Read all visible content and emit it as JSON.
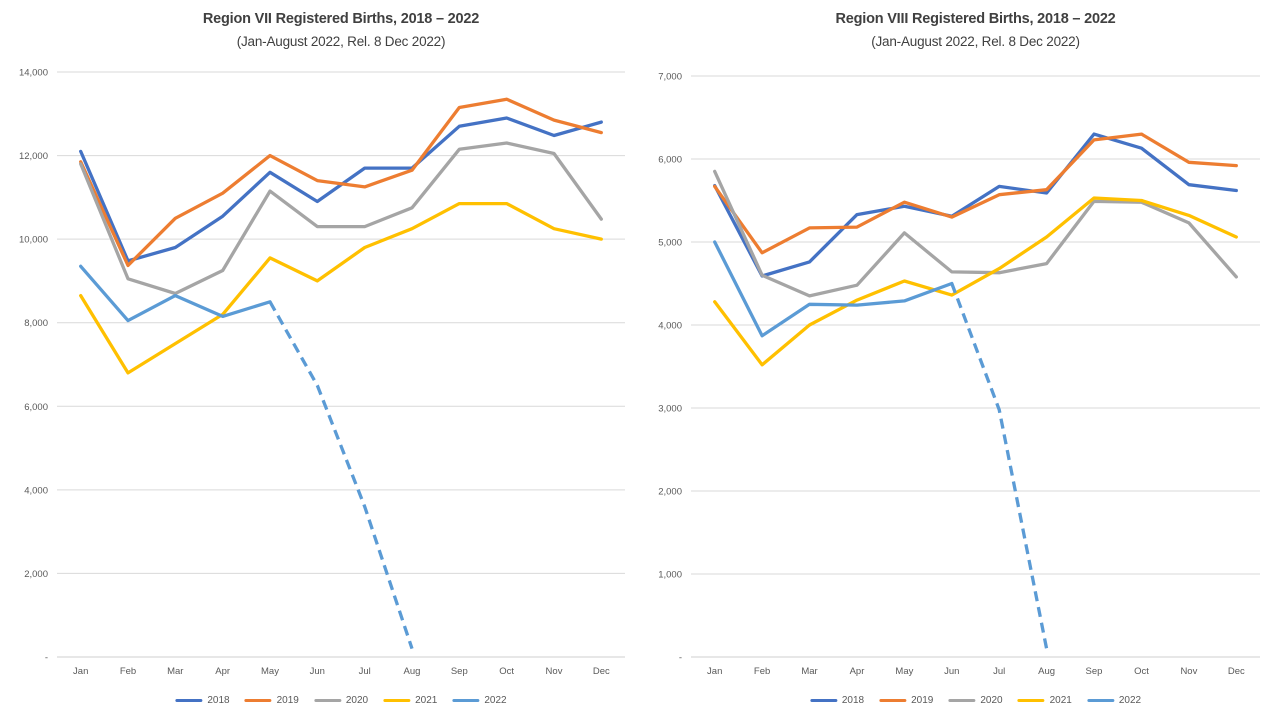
{
  "chart_data": [
    {
      "type": "line",
      "title": "Region VII Registered Births, 2018 – 2022",
      "subtitle": "(Jan-August 2022, Rel. 8 Dec 2022)",
      "categories": [
        "Jan",
        "Feb",
        "Mar",
        "Apr",
        "May",
        "Jun",
        "Jul",
        "Aug",
        "Sep",
        "Oct",
        "Nov",
        "Dec"
      ],
      "ylim": [
        0,
        14000
      ],
      "ytick_step": 2000,
      "ytick_labels": [
        "-",
        "2,000",
        "4,000",
        "6,000",
        "8,000",
        "10,000",
        "12,000",
        "14,000"
      ],
      "grid": true,
      "legend_position": "bottom",
      "series": [
        {
          "name": "2018",
          "color": "#4472C4",
          "values": [
            12100,
            9480,
            9800,
            10550,
            11600,
            10900,
            11700,
            11700,
            12700,
            12900,
            12480,
            12800
          ]
        },
        {
          "name": "2019",
          "color": "#ED7D31",
          "values": [
            11850,
            9370,
            10500,
            11100,
            12000,
            11400,
            11250,
            11650,
            13150,
            13350,
            12850,
            12550
          ]
        },
        {
          "name": "2020",
          "color": "#A5A5A5",
          "values": [
            11800,
            9050,
            8700,
            9250,
            11150,
            10300,
            10300,
            10750,
            12150,
            12300,
            12050,
            10480
          ]
        },
        {
          "name": "2021",
          "color": "#FFC000",
          "values": [
            8650,
            6800,
            7500,
            8200,
            9550,
            9000,
            9800,
            10250,
            10850,
            10850,
            10250,
            10000
          ]
        },
        {
          "name": "2022",
          "color": "#5B9BD5",
          "values": [
            9350,
            8050,
            8650,
            8150,
            8500,
            6500,
            3600,
            200,
            null,
            null,
            null,
            null
          ],
          "dash_from_index": 4
        }
      ]
    },
    {
      "type": "line",
      "title": "Region VIII Registered Births, 2018 – 2022",
      "subtitle": "(Jan-August 2022, Rel. 8 Dec 2022)",
      "categories": [
        "Jan",
        "Feb",
        "Mar",
        "Apr",
        "May",
        "Jun",
        "Jul",
        "Aug",
        "Sep",
        "Oct",
        "Nov",
        "Dec"
      ],
      "ylim": [
        0,
        7000
      ],
      "ytick_step": 1000,
      "ytick_labels": [
        "-",
        "1,000",
        "2,000",
        "3,000",
        "4,000",
        "5,000",
        "6,000",
        "7,000"
      ],
      "grid": true,
      "legend_position": "bottom",
      "series": [
        {
          "name": "2018",
          "color": "#4472C4",
          "values": [
            5680,
            4590,
            4760,
            5330,
            5430,
            5310,
            5670,
            5590,
            6300,
            6130,
            5690,
            5620
          ]
        },
        {
          "name": "2019",
          "color": "#ED7D31",
          "values": [
            5670,
            4870,
            5170,
            5180,
            5480,
            5300,
            5570,
            5630,
            6230,
            6300,
            5960,
            5920
          ]
        },
        {
          "name": "2020",
          "color": "#A5A5A5",
          "values": [
            5850,
            4600,
            4350,
            4480,
            5110,
            4640,
            4630,
            4740,
            5490,
            5480,
            5230,
            4580
          ]
        },
        {
          "name": "2021",
          "color": "#FFC000",
          "values": [
            4280,
            3520,
            4000,
            4300,
            4530,
            4360,
            4680,
            5060,
            5530,
            5500,
            5320,
            5060
          ]
        },
        {
          "name": "2022",
          "color": "#5B9BD5",
          "values": [
            5000,
            3870,
            4250,
            4240,
            4290,
            4500,
            2980,
            100,
            null,
            null,
            null,
            null
          ],
          "dash_from_index": 5
        }
      ]
    }
  ]
}
